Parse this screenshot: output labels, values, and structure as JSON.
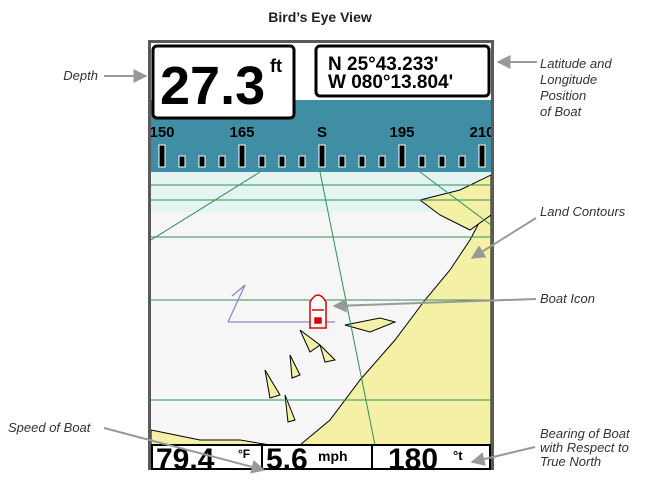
{
  "title": "Bird’s Eye View",
  "callouts": {
    "depth": "Depth",
    "position": [
      "Latitude and",
      "Longitude",
      "Position",
      "of Boat"
    ],
    "land": "Land Contours",
    "boat": "Boat Icon",
    "speed": "Speed of Boat",
    "bearing": [
      "Bearing of Boat",
      "with Respect to",
      "True North"
    ]
  },
  "screen": {
    "depth": {
      "value": "27.3",
      "unit": "ft"
    },
    "position": [
      "N 25°43.233'",
      "W 080°13.804'"
    ],
    "compass": [
      "150",
      "165",
      "S",
      "195",
      "210"
    ],
    "temperature": {
      "value": "79.4",
      "unit": "°F"
    },
    "speed": {
      "value": "5.6",
      "unit": "mph"
    },
    "bearing": {
      "value": "180",
      "unit": "°t"
    }
  }
}
